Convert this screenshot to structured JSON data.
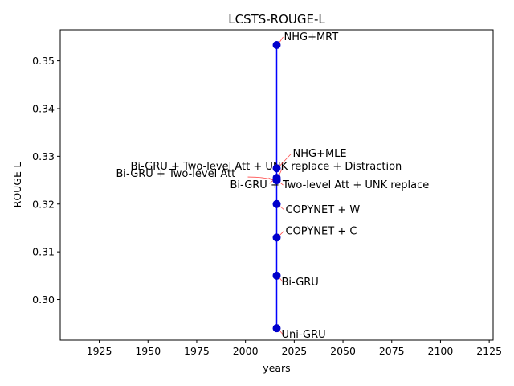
{
  "chart_data": {
    "type": "scatter",
    "title": "LCSTS-ROUGE-L",
    "xlabel": "years",
    "ylabel": "ROUGE-L",
    "xlim": [
      1905,
      2127
    ],
    "ylim": [
      0.2915,
      0.3565
    ],
    "xticks": [
      1925,
      1950,
      1975,
      2000,
      2025,
      2050,
      2075,
      2100,
      2125
    ],
    "yticks": [
      0.3,
      0.31,
      0.32,
      0.33,
      0.34,
      0.35
    ],
    "xtick_labels": [
      "1925",
      "1950",
      "1975",
      "2000",
      "2025",
      "2050",
      "2075",
      "2100",
      "2125"
    ],
    "ytick_labels": [
      "0.30",
      "0.31",
      "0.32",
      "0.33",
      "0.34",
      "0.35"
    ],
    "grid": false,
    "line_color": "#0000ff",
    "marker_color": "#0000cc",
    "annotation_arrow_color": "#ff4d4d",
    "points": [
      {
        "x": 2016,
        "y": 0.294,
        "label": "Uni-GRU"
      },
      {
        "x": 2016,
        "y": 0.305,
        "label": "Bi-GRU"
      },
      {
        "x": 2016,
        "y": 0.313,
        "label": "COPYNET + C"
      },
      {
        "x": 2016,
        "y": 0.32,
        "label": "COPYNET + W"
      },
      {
        "x": 2016,
        "y": 0.325,
        "label": "Bi-GRU + Two-level Att"
      },
      {
        "x": 2016,
        "y": 0.325,
        "label": "Bi-GRU + Two-level Att + UNK replace"
      },
      {
        "x": 2016,
        "y": 0.3255,
        "label": "Bi-GRU + Two-level Att + UNK replace + Distraction"
      },
      {
        "x": 2016,
        "y": 0.3275,
        "label": "NHG+MLE"
      },
      {
        "x": 2016,
        "y": 0.3533,
        "label": "NHG+MRT"
      }
    ]
  }
}
